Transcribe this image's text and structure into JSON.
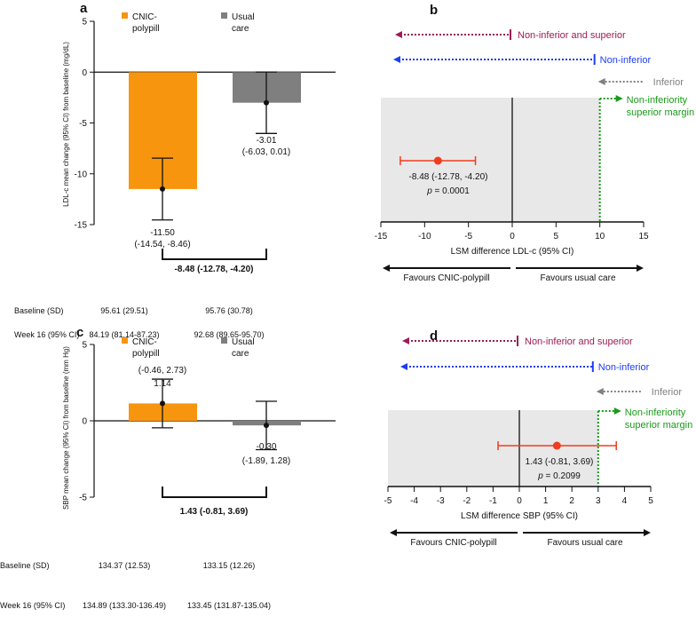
{
  "colors": {
    "cnic": "#f7950f",
    "usual": "#7f7f7f",
    "shade": "#e8e8e8",
    "point": "#f03c1e",
    "superior": "#9b1c56",
    "noninf": "#1c3cf5",
    "inferior": "#808080",
    "margin": "#1a9a1a"
  },
  "chart_data": [
    {
      "panel": "a",
      "type": "bar",
      "ylabel": "LDL-c mean change  (95% CI) from baseline (mg/dL)",
      "ylim": [
        -15,
        5
      ],
      "yticks": [
        5,
        0,
        -5,
        -10,
        -15
      ],
      "series": [
        {
          "name": "CNIC-polypill",
          "legend": [
            "CNIC-",
            "polypill"
          ],
          "value": -11.5,
          "ci": [
            -14.54,
            -8.46
          ],
          "label": "-11.50",
          "ci_label": "(-14.54, -8.46)"
        },
        {
          "name": "Usual care",
          "legend": [
            "Usual",
            "care"
          ],
          "value": -3.01,
          "ci": [
            -6.03,
            0.01
          ],
          "label": "-3.01",
          "ci_label": "(-6.03, 0.01)"
        }
      ],
      "difference": "-8.48 (-12.78, -4.20)",
      "table": [
        {
          "label": "Baseline (SD)",
          "values": [
            "95.61 (29.51)",
            "95.76 (30.78)"
          ]
        },
        {
          "label": "Week 16 (95% CI)",
          "values": [
            "84.19 (81.14-87.23)",
            "92.68 (89.65-95.70)"
          ]
        }
      ]
    },
    {
      "panel": "b",
      "type": "scatter",
      "xlabel": "LSM difference LDL-c (95% CI)",
      "xlim": [
        -15,
        15
      ],
      "xticks": [
        -15,
        -10,
        -5,
        0,
        5,
        10,
        15
      ],
      "estimate": -8.48,
      "ci": [
        -12.78,
        -4.2
      ],
      "estimate_label": "-8.48 (-12.78, -4.20)",
      "p_label": "p",
      "p_value": "= 0.0001",
      "margin": 10,
      "legend": {
        "superior": "Non-inferior and superior",
        "noninferior": "Non-inferior",
        "inferior": "Inferior",
        "margin": [
          "Non-inferiority",
          "superior margin"
        ]
      },
      "favours": [
        "Favours CNIC-polypill",
        "Favours usual care"
      ]
    },
    {
      "panel": "c",
      "type": "bar",
      "ylabel": "SBP mean change  (95% CI) from baseline (mm Hg)",
      "ylim": [
        -5,
        5
      ],
      "yticks": [
        5,
        0,
        -5
      ],
      "series": [
        {
          "name": "CNIC-polypill",
          "legend": [
            "CNIC-",
            "polypill"
          ],
          "value": 1.14,
          "ci": [
            -0.46,
            2.73
          ],
          "label": "1.14",
          "ci_label": "(-0.46, 2.73)"
        },
        {
          "name": "Usual care",
          "legend": [
            "Usual",
            "care"
          ],
          "value": -0.3,
          "ci": [
            -1.89,
            1.28
          ],
          "label": "-0.30",
          "ci_label": "(-1.89, 1.28)"
        }
      ],
      "difference": "1.43 (-0.81, 3.69)",
      "table": [
        {
          "label": "Baseline (SD)",
          "values": [
            "134.37 (12.53)",
            "133.15 (12.26)"
          ]
        },
        {
          "label": "Week 16 (95% CI)",
          "values": [
            "134.89 (133.30-136.49)",
            "133.45 (131.87-135.04)"
          ]
        }
      ]
    },
    {
      "panel": "d",
      "type": "scatter",
      "xlabel": "LSM difference SBP (95% CI)",
      "xlim": [
        -5,
        5
      ],
      "xticks": [
        -5,
        -4,
        -3,
        -2,
        -1,
        0,
        1,
        2,
        3,
        4,
        5
      ],
      "estimate": 1.43,
      "ci": [
        -0.81,
        3.69
      ],
      "estimate_label": "1.43 (-0.81, 3.69)",
      "p_label": "p",
      "p_value": "= 0.2099",
      "margin": 3,
      "legend": {
        "superior": "Non-inferior and superior",
        "noninferior": "Non-inferior",
        "inferior": "Inferior",
        "margin": [
          "Non-inferiority",
          "superior margin"
        ]
      },
      "favours": [
        "Favours CNIC-polypill",
        "Favours usual care"
      ]
    }
  ]
}
